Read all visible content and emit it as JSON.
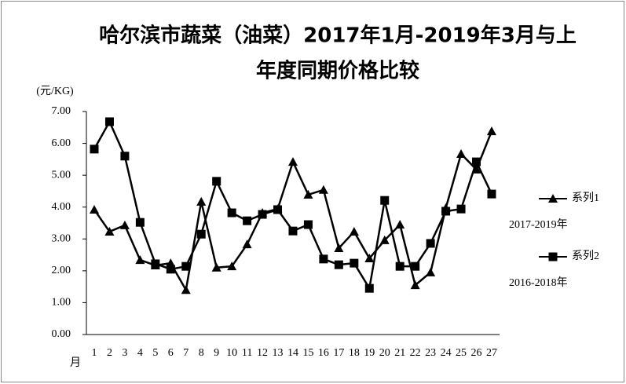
{
  "chart_data": {
    "type": "line",
    "title": [
      "哈尔滨市蔬菜（油菜）2017年1月-2019年3月与上",
      "年度同期价格比较"
    ],
    "y_label": "(元/KG)",
    "x_label": "月",
    "categories": [
      "1",
      "2",
      "3",
      "4",
      "5",
      "6",
      "7",
      "8",
      "9",
      "10",
      "11",
      "12",
      "13",
      "14",
      "15",
      "16",
      "17",
      "18",
      "19",
      "20",
      "21",
      "22",
      "23",
      "24",
      "25",
      "26",
      "27"
    ],
    "series": [
      {
        "name": "系列1",
        "color": "#000000",
        "marker": "triangle",
        "note": "2017-2019年",
        "values": [
          3.92,
          3.23,
          3.43,
          2.34,
          2.17,
          2.24,
          1.4,
          4.17,
          2.1,
          2.14,
          2.83,
          3.82,
          3.94,
          5.42,
          4.39,
          4.54,
          2.71,
          3.23,
          2.39,
          2.96,
          3.45,
          1.55,
          1.95,
          3.97,
          5.67,
          5.18,
          6.38
        ]
      },
      {
        "name": "系列2",
        "color": "#000000",
        "marker": "square",
        "note": "2016-2018年",
        "values": [
          5.82,
          6.68,
          5.6,
          3.52,
          2.22,
          2.05,
          2.14,
          3.15,
          4.81,
          3.82,
          3.57,
          3.77,
          3.92,
          3.25,
          3.45,
          2.37,
          2.19,
          2.24,
          1.45,
          4.21,
          2.14,
          2.14,
          2.86,
          3.87,
          3.94,
          5.42,
          4.41
        ]
      }
    ],
    "ylim": [
      0,
      7
    ],
    "yticks": [
      {
        "value": 0,
        "label": "0.00"
      },
      {
        "value": 1,
        "label": "1.00"
      },
      {
        "value": 2,
        "label": "2.00"
      },
      {
        "value": 3,
        "label": "3.00"
      },
      {
        "value": 4,
        "label": "4.00"
      },
      {
        "value": 5,
        "label": "5.00"
      },
      {
        "value": 6,
        "label": "6.00"
      },
      {
        "value": 7,
        "label": "7.00"
      }
    ],
    "grid": false
  }
}
